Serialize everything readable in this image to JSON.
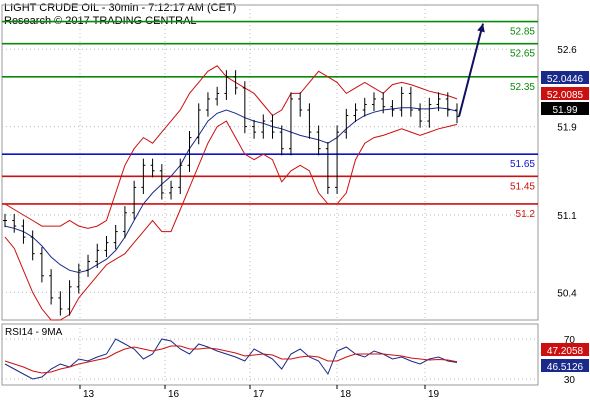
{
  "header": {
    "line1": "LIGHT CRUDE OIL - 30min - 7:12:17 AM (CET)",
    "line2": "Research © 2017 TRADING CENTRAL"
  },
  "chart_data": [
    {
      "type": "line",
      "y_axis": {
        "ylim": [
          50.15,
          53.0
        ],
        "ticks": [
          52.6,
          51.9,
          51.1,
          50.4
        ]
      },
      "x_ticks": [
        "13",
        "16",
        "17",
        "18",
        "19"
      ],
      "grid": true,
      "levels": [
        {
          "value": 52.85,
          "label": "52.85",
          "color": "#0a8a0a"
        },
        {
          "value": 52.65,
          "label": "52.65",
          "color": "#0a8a0a"
        },
        {
          "value": 52.35,
          "label": "52.35",
          "color": "#0a8a0a"
        },
        {
          "value": 51.65,
          "label": "51.65",
          "color": "#1010cc"
        },
        {
          "value": 51.45,
          "label": "51.45",
          "color": "#cc1010"
        },
        {
          "value": 51.2,
          "label": "51.2",
          "color": "#cc1010"
        }
      ],
      "price_tags": [
        {
          "value": 52.0446,
          "label": "52.0446",
          "bg": "#1a2a8a",
          "fg": "#ffffff"
        },
        {
          "value": 52.0085,
          "label": "52.0085",
          "bg": "#cc1010",
          "fg": "#ffffff"
        },
        {
          "value": 51.99,
          "label": "51.99",
          "bg": "#000000",
          "fg": "#ffffff"
        }
      ],
      "price_series": [
        51.05,
        51.0,
        50.9,
        50.75,
        50.55,
        50.35,
        50.25,
        50.45,
        50.6,
        50.68,
        50.78,
        50.85,
        50.95,
        51.12,
        51.35,
        51.55,
        51.5,
        51.3,
        51.35,
        51.55,
        51.8,
        52.05,
        52.15,
        52.2,
        52.35,
        52.25,
        51.9,
        51.85,
        51.95,
        51.85,
        51.7,
        52.15,
        52.05,
        51.85,
        51.7,
        51.35,
        51.85,
        52.0,
        52.05,
        52.1,
        52.15,
        52.08,
        52.05,
        52.2,
        52.05,
        51.95,
        52.1,
        52.15,
        52.05,
        51.99
      ],
      "bollinger_upper": [
        51.2,
        51.15,
        51.1,
        51.05,
        51.0,
        51.0,
        51.0,
        51.05,
        51.0,
        50.98,
        51.0,
        51.05,
        51.3,
        51.55,
        51.7,
        51.8,
        51.75,
        51.85,
        51.95,
        52.05,
        52.2,
        52.3,
        52.4,
        52.45,
        52.35,
        52.3,
        52.25,
        52.2,
        52.1,
        52.0,
        52.05,
        52.2,
        52.2,
        52.3,
        52.4,
        52.35,
        52.3,
        52.2,
        52.25,
        52.3,
        52.25,
        52.2,
        52.28,
        52.3,
        52.28,
        52.25,
        52.22,
        52.2,
        52.18,
        52.15
      ],
      "bollinger_lower": [
        50.9,
        50.8,
        50.6,
        50.4,
        50.25,
        50.15,
        50.15,
        50.2,
        50.35,
        50.45,
        50.55,
        50.65,
        50.7,
        50.75,
        50.85,
        50.95,
        51.05,
        50.95,
        50.95,
        51.15,
        51.35,
        51.55,
        51.75,
        51.9,
        51.95,
        51.8,
        51.65,
        51.6,
        51.65,
        51.6,
        51.4,
        51.5,
        51.55,
        51.5,
        51.3,
        51.2,
        51.2,
        51.3,
        51.6,
        51.75,
        51.8,
        51.82,
        51.85,
        51.88,
        51.85,
        51.82,
        51.85,
        51.88,
        51.9,
        51.92
      ],
      "moving_average": [
        51.0,
        50.98,
        50.95,
        50.9,
        50.82,
        50.72,
        50.65,
        50.6,
        50.58,
        50.6,
        50.65,
        50.7,
        50.78,
        50.9,
        51.05,
        51.2,
        51.3,
        51.38,
        51.45,
        51.55,
        51.7,
        51.82,
        51.95,
        52.02,
        52.05,
        52.02,
        51.98,
        51.95,
        51.93,
        51.9,
        51.88,
        51.85,
        51.82,
        51.8,
        51.78,
        51.75,
        51.8,
        51.88,
        51.95,
        52.0,
        52.03,
        52.05,
        52.06,
        52.07,
        52.07,
        52.06,
        52.06,
        52.07,
        52.06,
        52.04
      ],
      "projection": {
        "from": 51.99,
        "to": 52.85
      }
    },
    {
      "type": "line",
      "title": "RSI14 - 9MA",
      "ylim": [
        24,
        85
      ],
      "ticks": [
        70,
        30
      ],
      "tags": [
        {
          "value": 47.2058,
          "label": "47.2058",
          "bg": "#cc1010",
          "fg": "#ffffff"
        },
        {
          "value": 46.5126,
          "label": "46.5126",
          "bg": "#1a2a8a",
          "fg": "#ffffff"
        }
      ],
      "rsi_series": [
        45,
        40,
        35,
        30,
        32,
        40,
        45,
        42,
        50,
        48,
        52,
        55,
        70,
        65,
        60,
        50,
        55,
        70,
        68,
        60,
        55,
        65,
        62,
        58,
        55,
        52,
        48,
        60,
        55,
        50,
        40,
        55,
        60,
        52,
        48,
        35,
        58,
        62,
        55,
        52,
        58,
        55,
        50,
        52,
        48,
        45,
        50,
        52,
        48,
        46.5
      ],
      "ma_series": [
        48,
        45,
        42,
        38,
        36,
        37,
        40,
        42,
        45,
        47,
        49,
        51,
        56,
        60,
        62,
        60,
        58,
        60,
        63,
        63,
        60,
        60,
        61,
        60,
        58,
        56,
        53,
        54,
        55,
        54,
        50,
        50,
        52,
        53,
        52,
        48,
        48,
        52,
        55,
        55,
        55,
        55,
        54,
        53,
        51,
        50,
        49,
        49.5,
        49,
        47.2
      ]
    }
  ]
}
